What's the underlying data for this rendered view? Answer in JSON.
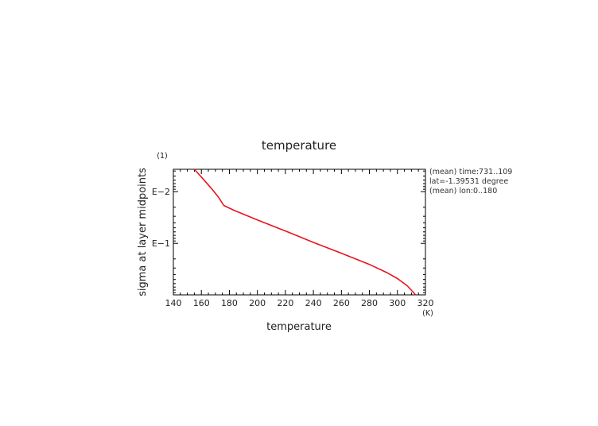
{
  "chart_data": {
    "type": "line",
    "title": "temperature",
    "xlabel": "temperature",
    "xunit": "(K)",
    "ylabel": "sigma at layer midpoints",
    "yunit": "(1)",
    "xlim": [
      140,
      320
    ],
    "xticks": [
      140,
      160,
      180,
      200,
      220,
      240,
      260,
      280,
      300,
      320
    ],
    "xtick_labels": [
      "140",
      "160",
      "180",
      "200",
      "220",
      "240",
      "260",
      "280",
      "300",
      "320"
    ],
    "yscale": "log",
    "ylim": [
      0.0037,
      0.99
    ],
    "yinvert": true,
    "yticks": [
      0.01,
      0.1
    ],
    "ytick_labels": [
      "E−2",
      "E−1"
    ],
    "annotations": [
      "(mean) time:731..109",
      "lat=-1.39531 degree",
      "(mean) lon:0..180"
    ],
    "grid": false,
    "legend": "none",
    "series": [
      {
        "color": "#e8141c",
        "x": [
          155,
          161,
          167,
          172,
          176,
          183,
          200,
          220,
          240,
          260,
          280,
          292,
          300,
          307,
          313
        ],
        "y": [
          0.0037,
          0.0056,
          0.0086,
          0.0126,
          0.0185,
          0.0228,
          0.0354,
          0.0575,
          0.0958,
          0.155,
          0.255,
          0.362,
          0.48,
          0.66,
          0.99
        ]
      }
    ]
  }
}
